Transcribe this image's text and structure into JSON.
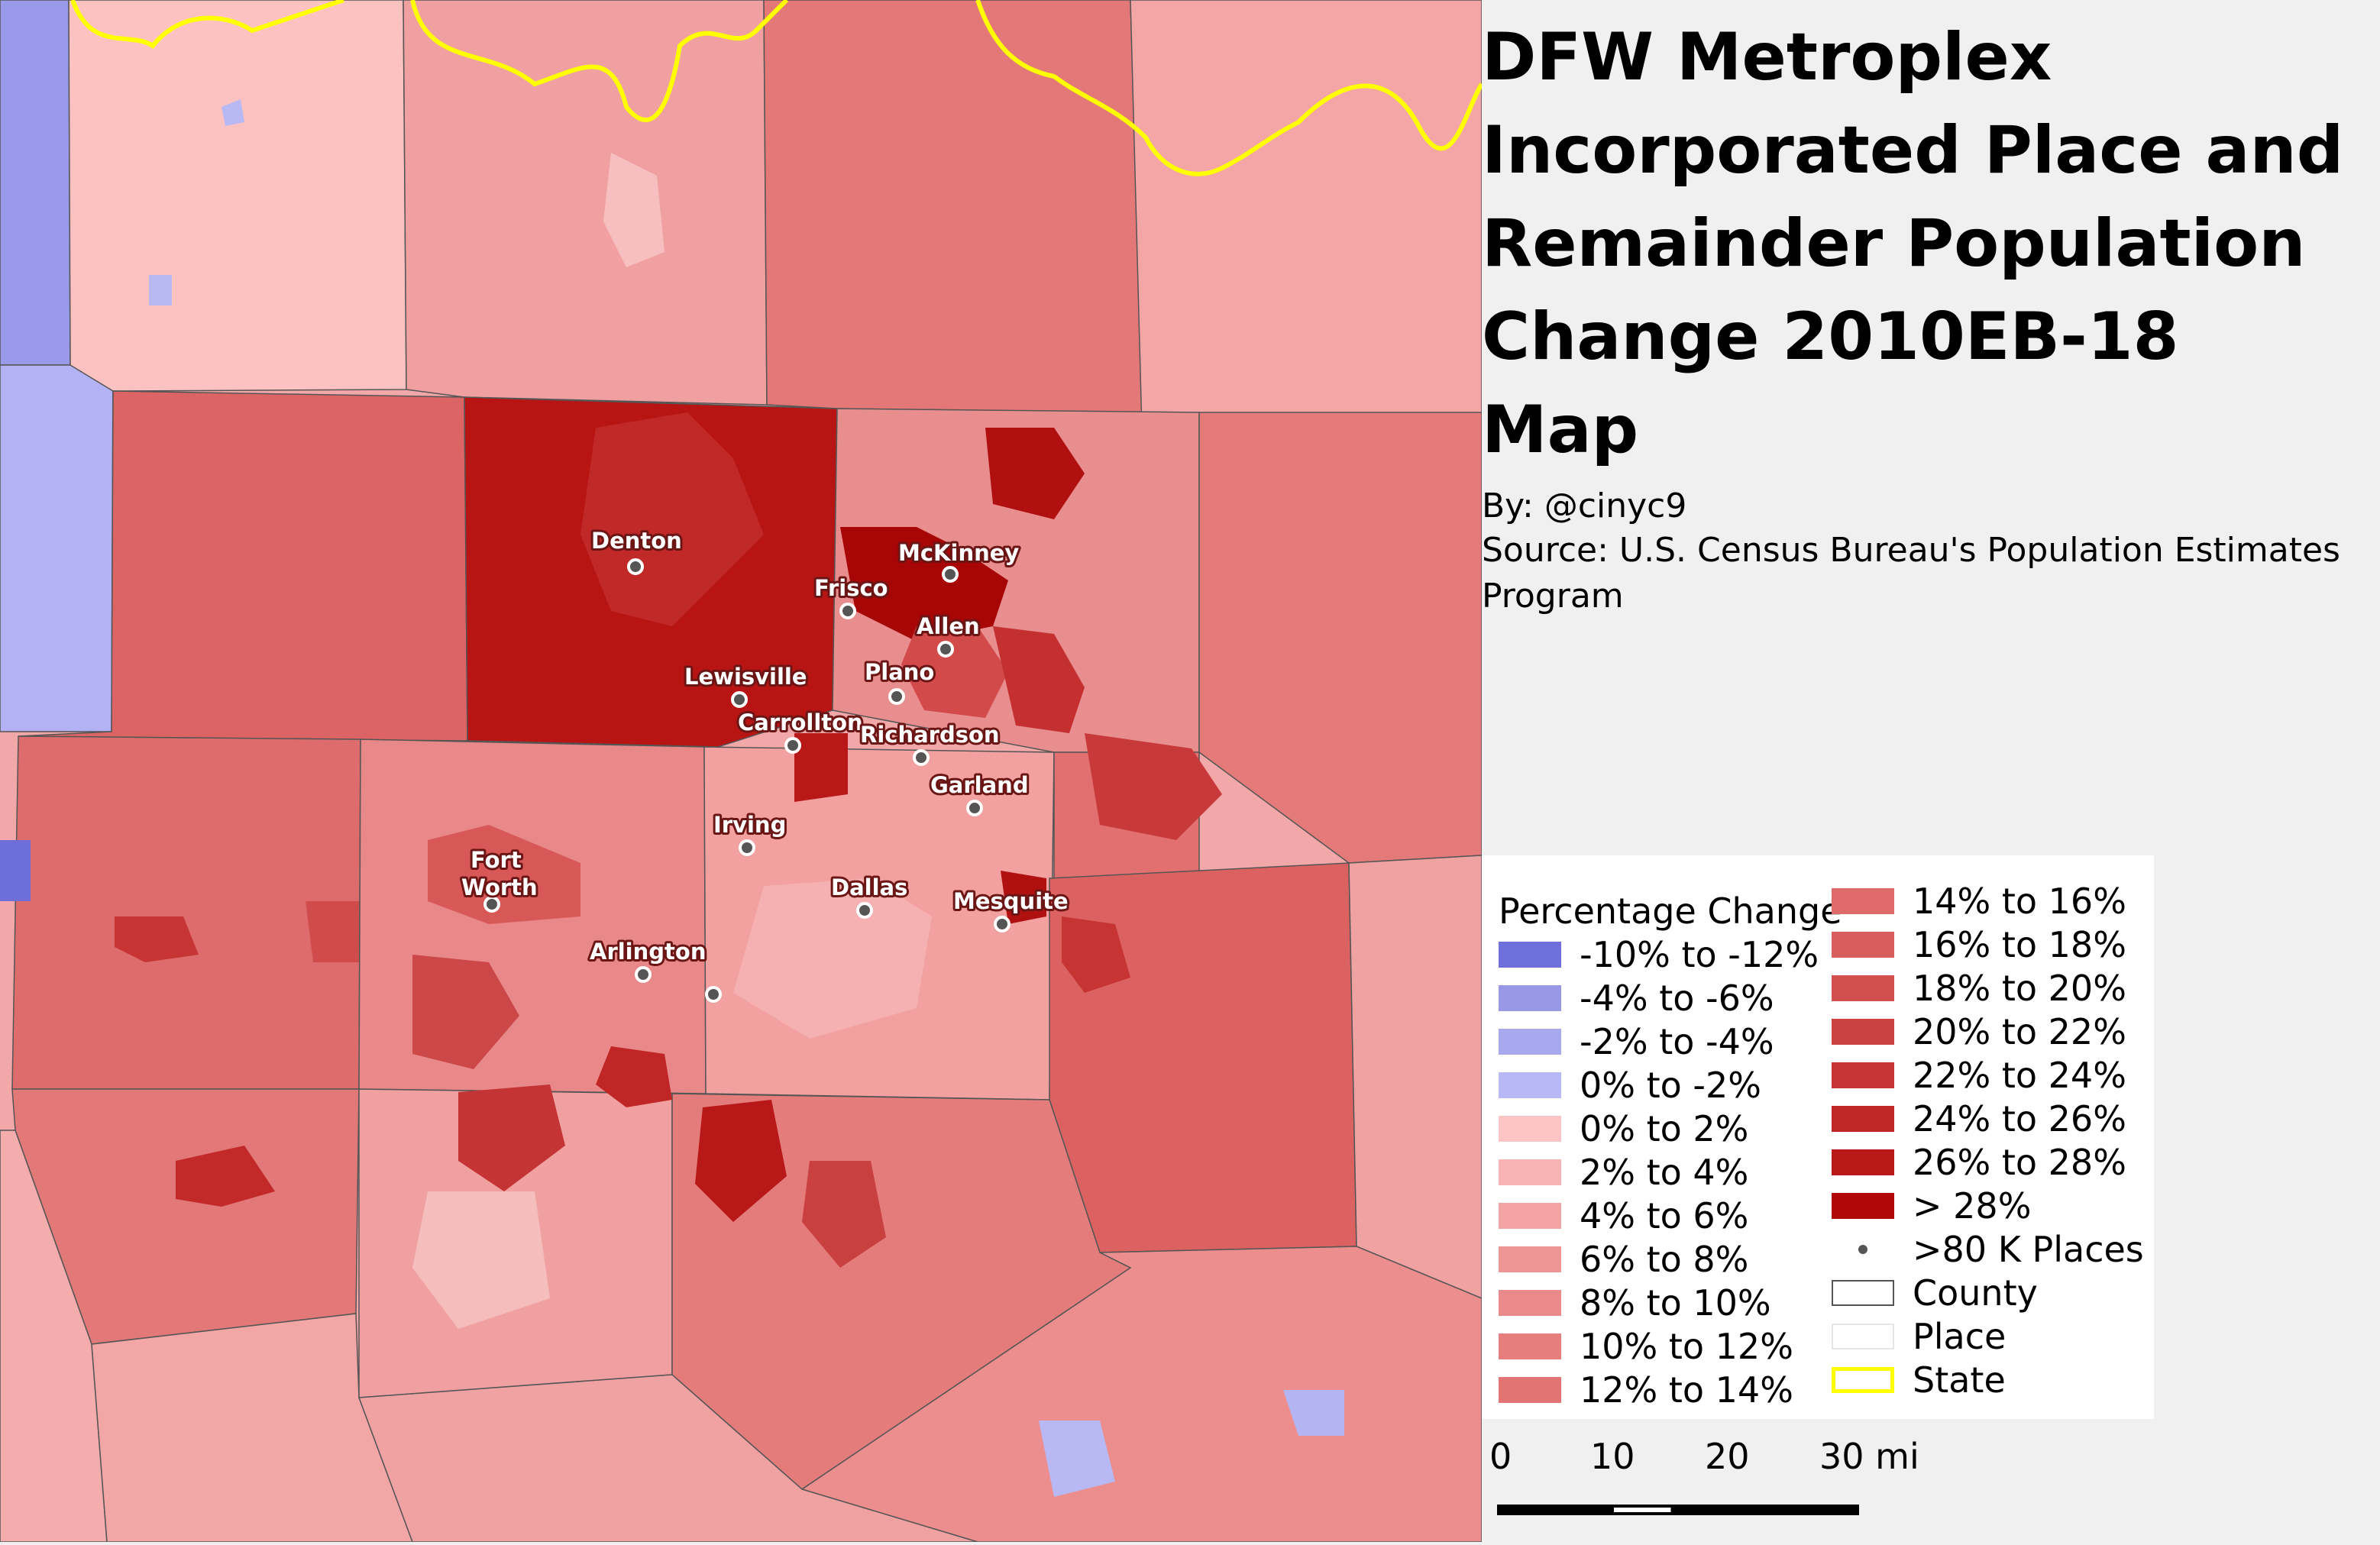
{
  "title": {
    "lines": [
      "DFW Metroplex",
      "Incorporated Place and",
      "Remainder Population",
      "Change 2010EB-18",
      "Map"
    ]
  },
  "credits": {
    "by": "By: @cinyc9",
    "source_line1": "Source: U.S. Census Bureau's Population Estimates",
    "source_line2": "Program"
  },
  "legend": {
    "title": "Percentage Change",
    "items": [
      {
        "label": "-10% to -12%",
        "color": "#7070dc"
      },
      {
        "label": "-4% to -6%",
        "color": "#9898e6"
      },
      {
        "label": "-2% to -4%",
        "color": "#a8a8ee"
      },
      {
        "label": "0% to -2%",
        "color": "#b8b8f6"
      },
      {
        "label": "0% to 2%",
        "color": "#fcc4c4"
      },
      {
        "label": "2% to 4%",
        "color": "#f8b4b4"
      },
      {
        "label": "4% to 6%",
        "color": "#f4a4a4"
      },
      {
        "label": "6% to 8%",
        "color": "#ee9696"
      },
      {
        "label": "8% to 10%",
        "color": "#ea8a8a"
      },
      {
        "label": "10% to 12%",
        "color": "#e67e7e"
      },
      {
        "label": "12% to 14%",
        "color": "#e27474"
      },
      {
        "label": "14% to 16%",
        "color": "#de6a6a"
      },
      {
        "label": "16% to 18%",
        "color": "#d85e5e"
      },
      {
        "label": "18% to 20%",
        "color": "#d25050"
      },
      {
        "label": "20% to 22%",
        "color": "#cc4242"
      },
      {
        "label": "22% to 24%",
        "color": "#c63434"
      },
      {
        "label": "24% to 26%",
        "color": "#c02626"
      },
      {
        "label": "26% to 28%",
        "color": "#b81818"
      },
      {
        "label": "> 28%",
        "color": "#b00808"
      },
      {
        "label": ">80 K Places",
        "type": "dot"
      },
      {
        "label": "County",
        "type": "county"
      },
      {
        "label": "Place",
        "type": "place"
      },
      {
        "label": "State",
        "type": "state"
      }
    ]
  },
  "scale": {
    "labels": [
      "0",
      "10",
      "20",
      "30 mi"
    ]
  },
  "cities": [
    {
      "name": "Denton"
    },
    {
      "name": "McKinney"
    },
    {
      "name": "Frisco"
    },
    {
      "name": "Allen"
    },
    {
      "name": "Lewisville"
    },
    {
      "name": "Plano"
    },
    {
      "name": "Carrollton"
    },
    {
      "name": "Richardson"
    },
    {
      "name": "Garland"
    },
    {
      "name": "Irving"
    },
    {
      "name": "Fort"
    },
    {
      "name": "Worth"
    },
    {
      "name": "Dallas"
    },
    {
      "name": "Mesquite"
    },
    {
      "name": "Arlington"
    }
  ],
  "colors": {
    "state_boundary": "#ffff00",
    "county_boundary": "#555555"
  }
}
